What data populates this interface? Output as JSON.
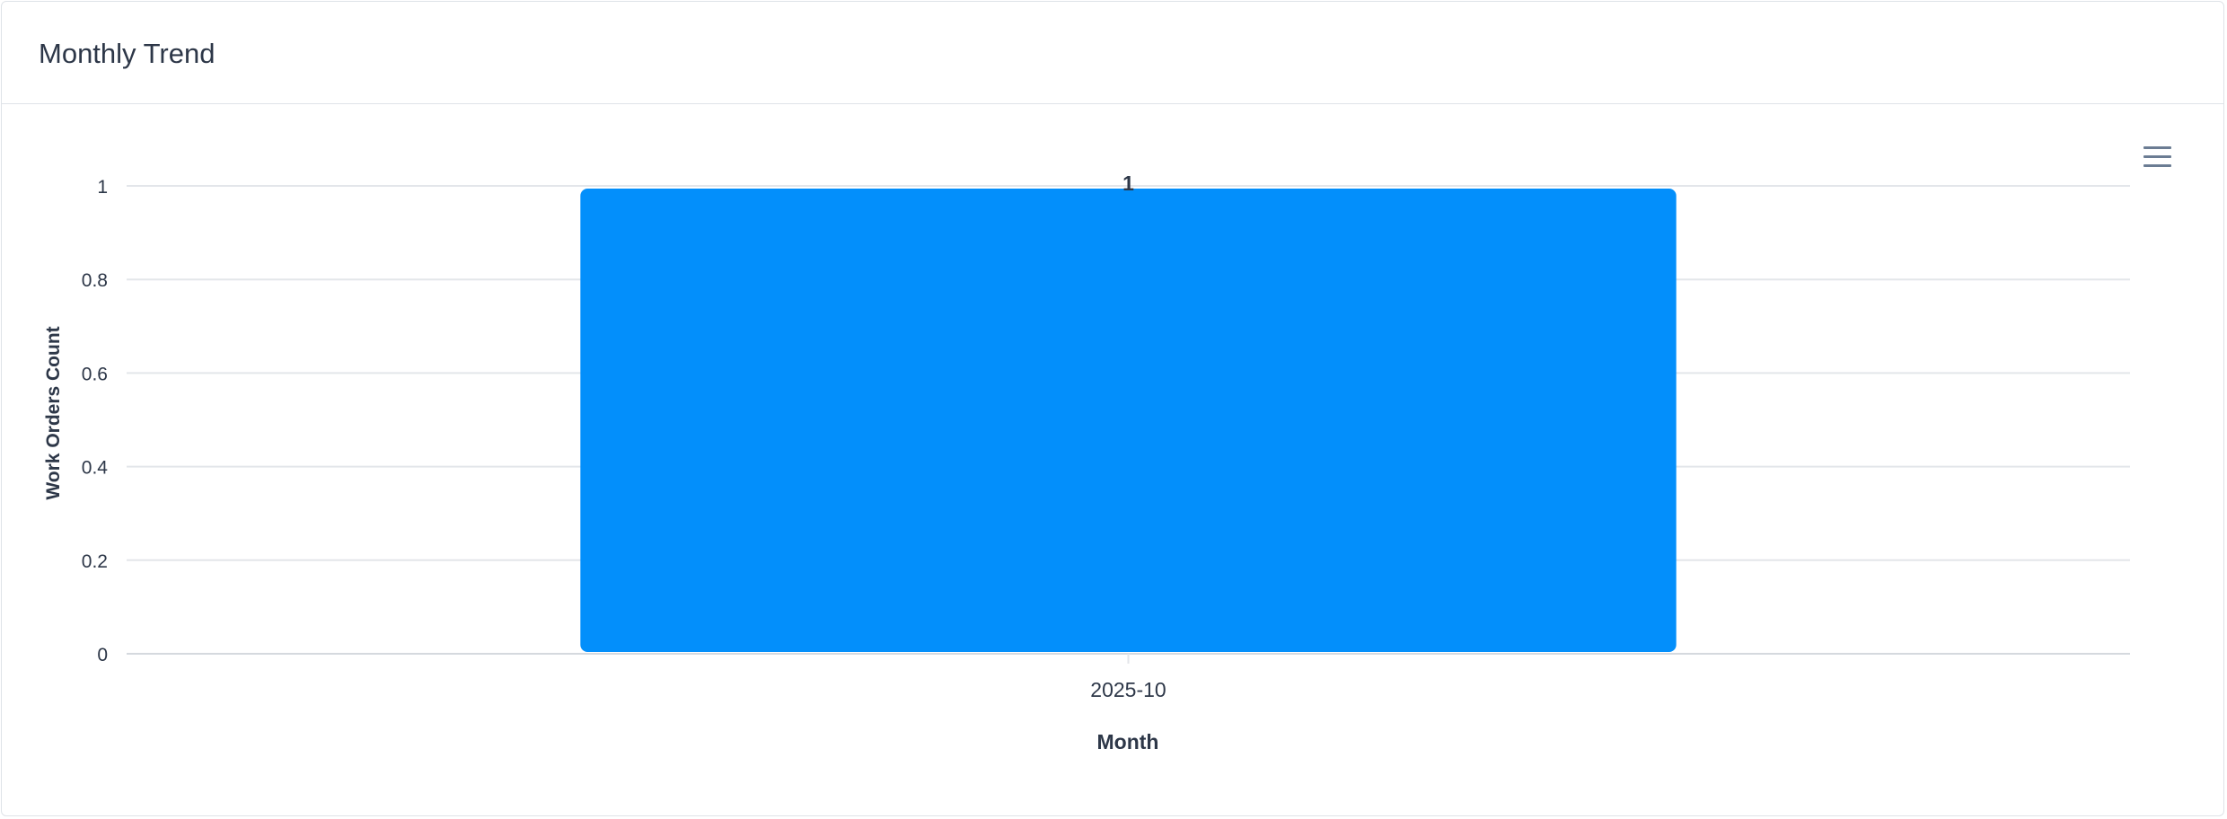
{
  "card": {
    "title": "Monthly Trend"
  },
  "colors": {
    "bar": "#038ffb",
    "grid": "#e3e6ea",
    "axis_text": "#2d3748",
    "menu_icon": "#6b7c93"
  },
  "chart_data": {
    "type": "bar",
    "title": "",
    "categories": [
      "2025-10"
    ],
    "values": [
      1
    ],
    "data_labels": [
      "1"
    ],
    "xlabel": "Month",
    "ylabel": "Work Orders Count",
    "ylim": [
      0,
      1
    ],
    "yticks": [
      "0",
      "0.2",
      "0.4",
      "0.6",
      "0.8",
      "1"
    ],
    "ytick_values": [
      0,
      0.2,
      0.4,
      0.6,
      0.8,
      1
    ],
    "grid": true,
    "legend": "none"
  },
  "toolbar": {
    "menu_icon": "hamburger-menu-icon"
  }
}
